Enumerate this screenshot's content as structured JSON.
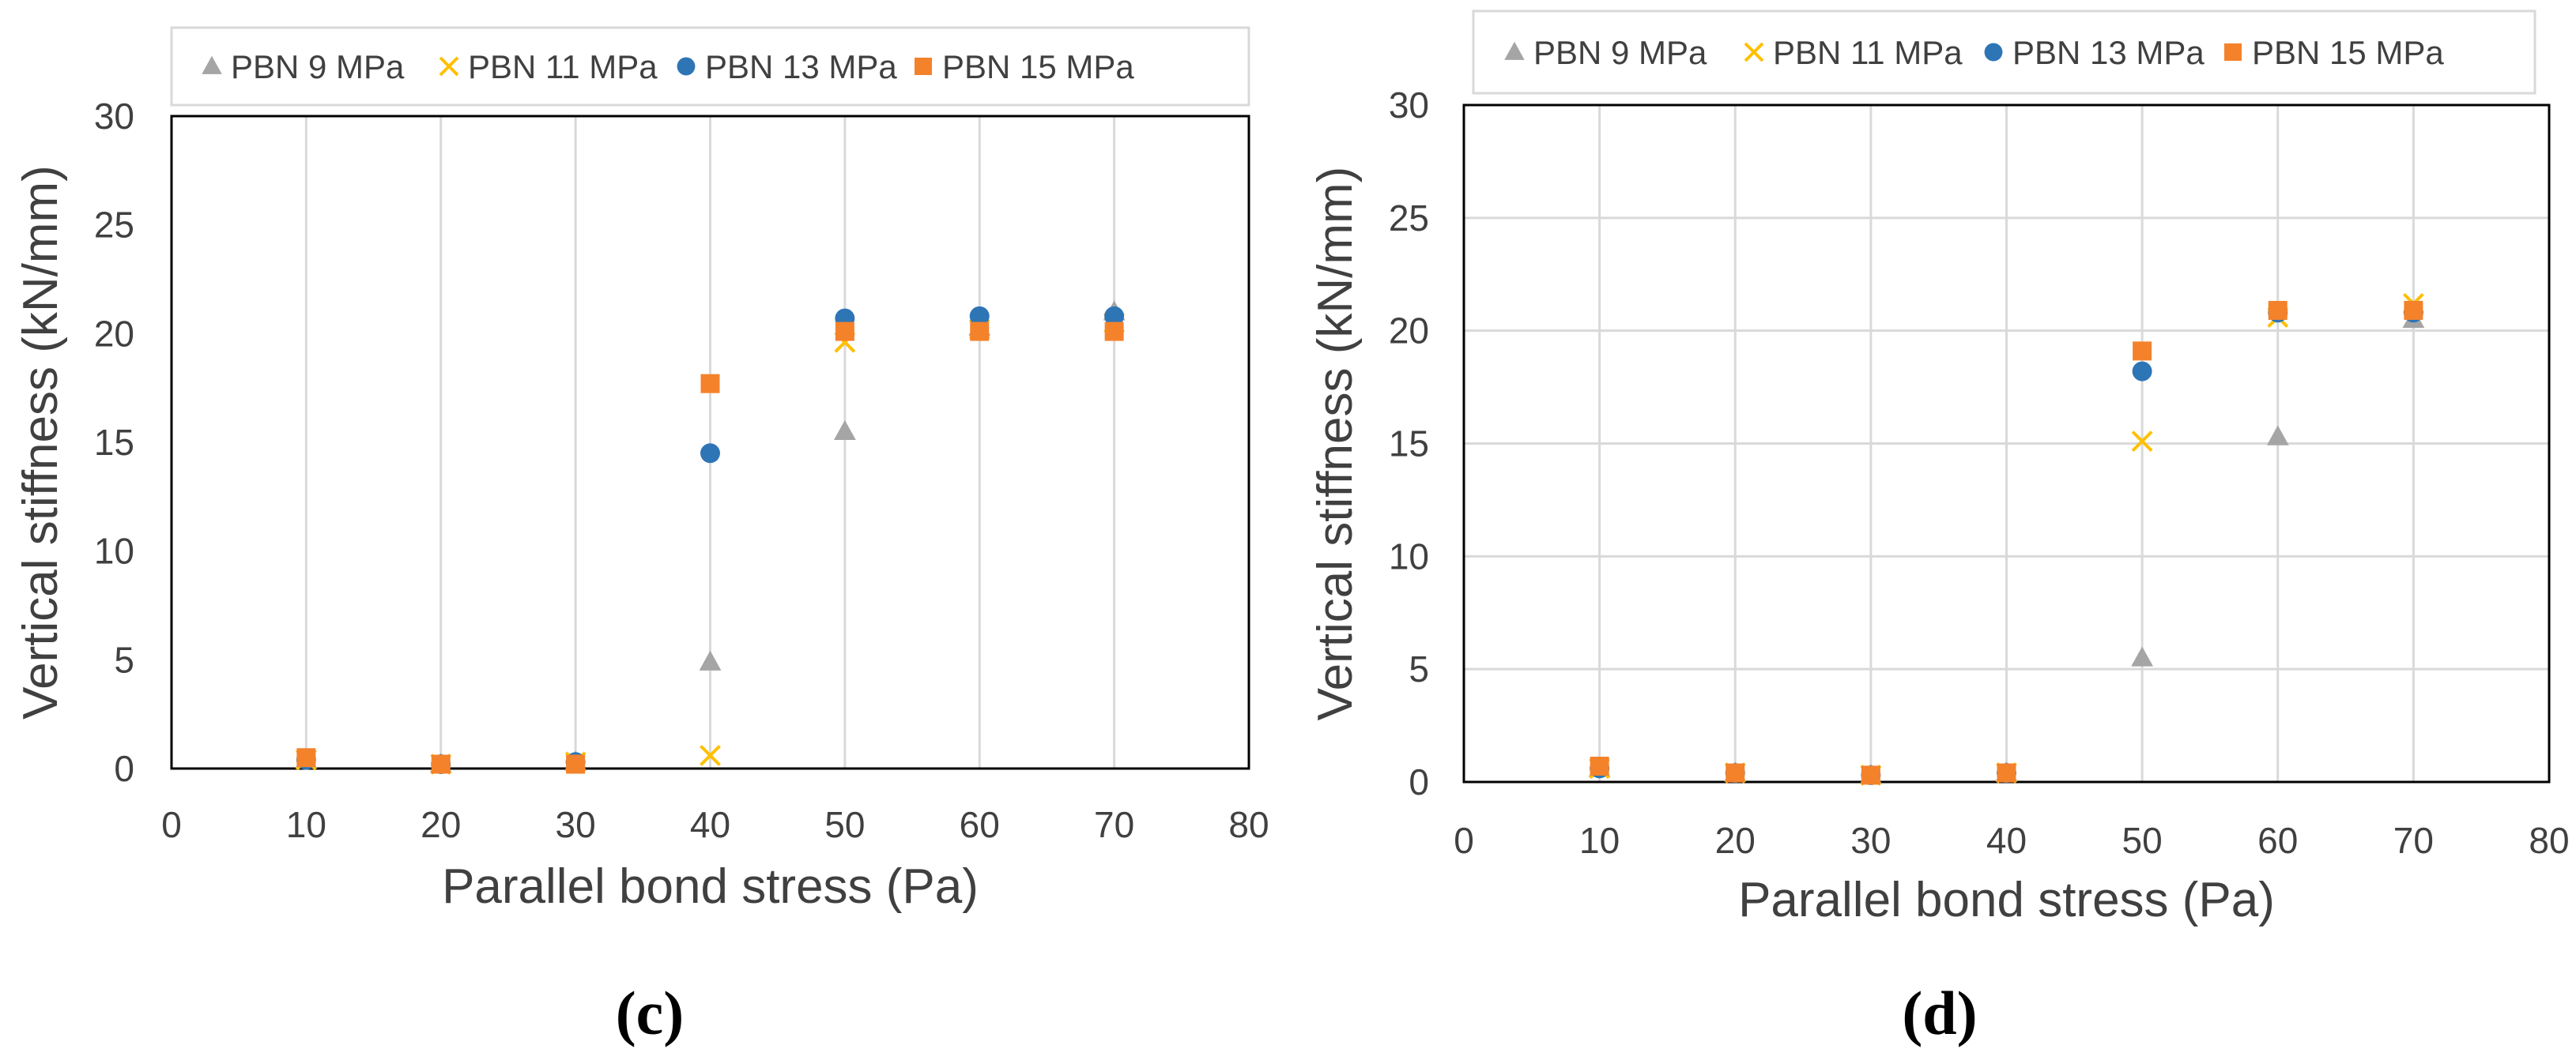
{
  "colors": {
    "pbn9": "#a5a5a5",
    "pbn11": "#ffc000",
    "pbn13": "#2e75b6",
    "pbn15": "#f4822b",
    "grid": "#d9d9d9",
    "axis": "#000000",
    "text": "#404040"
  },
  "chart_data": [
    {
      "type": "scatter",
      "panel": "(c)",
      "xlabel": "Parallel bond stress (Pa)",
      "ylabel": "Vertical stiffness (kN/mm)",
      "xlim": [
        0,
        80
      ],
      "ylim": [
        0,
        30
      ],
      "xticks": [
        "0",
        "10",
        "20",
        "30",
        "40",
        "50",
        "60",
        "70",
        "80"
      ],
      "yticks": [
        "0",
        "5",
        "10",
        "15",
        "20",
        "25",
        "30"
      ],
      "grid": "vertical",
      "legend": "top",
      "series": [
        {
          "name": "PBN 9 MPa",
          "marker": "triangle",
          "x": [
            10,
            20,
            30,
            40,
            50,
            60,
            70
          ],
          "y": [
            0.4,
            0.2,
            0.3,
            4.9,
            15.5,
            20.3,
            21.0
          ]
        },
        {
          "name": "PBN 11 MPa",
          "marker": "x",
          "x": [
            10,
            20,
            30,
            40,
            50,
            60,
            70
          ],
          "y": [
            0.4,
            0.2,
            0.3,
            0.6,
            19.6,
            20.2,
            20.5
          ]
        },
        {
          "name": "PBN 13 MPa",
          "marker": "circle",
          "x": [
            10,
            20,
            30,
            40,
            50,
            60,
            70
          ],
          "y": [
            0.4,
            0.2,
            0.3,
            14.5,
            20.7,
            20.8,
            20.8
          ]
        },
        {
          "name": "PBN 15 MPa",
          "marker": "square",
          "x": [
            10,
            20,
            30,
            40,
            50,
            60,
            70
          ],
          "y": [
            0.5,
            0.2,
            0.2,
            17.7,
            20.1,
            20.1,
            20.1
          ]
        }
      ]
    },
    {
      "type": "scatter",
      "panel": "(d)",
      "xlabel": "Parallel bond stress (Pa)",
      "ylabel": "Vertical stiffness (kN/mm)",
      "xlim": [
        0,
        80
      ],
      "ylim": [
        0,
        30
      ],
      "xticks": [
        "0",
        "10",
        "20",
        "30",
        "40",
        "50",
        "60",
        "70",
        "80"
      ],
      "yticks": [
        "0",
        "5",
        "10",
        "15",
        "20",
        "25",
        "30"
      ],
      "grid": "both",
      "legend": "top",
      "series": [
        {
          "name": "PBN 9 MPa",
          "marker": "triangle",
          "x": [
            10,
            20,
            30,
            40,
            50,
            60,
            70
          ],
          "y": [
            0.6,
            0.4,
            0.3,
            0.4,
            5.5,
            15.3,
            20.5
          ]
        },
        {
          "name": "PBN 11 MPa",
          "marker": "x",
          "x": [
            10,
            20,
            30,
            40,
            50,
            60,
            70
          ],
          "y": [
            0.6,
            0.4,
            0.3,
            0.4,
            15.1,
            20.6,
            21.2
          ]
        },
        {
          "name": "PBN 13 MPa",
          "marker": "circle",
          "x": [
            10,
            20,
            30,
            40,
            50,
            60,
            70
          ],
          "y": [
            0.6,
            0.4,
            0.3,
            0.4,
            18.2,
            20.8,
            20.8
          ]
        },
        {
          "name": "PBN 15 MPa",
          "marker": "square",
          "x": [
            10,
            20,
            30,
            40,
            50,
            60,
            70
          ],
          "y": [
            0.7,
            0.4,
            0.3,
            0.4,
            19.1,
            20.9,
            20.9
          ]
        }
      ]
    }
  ]
}
